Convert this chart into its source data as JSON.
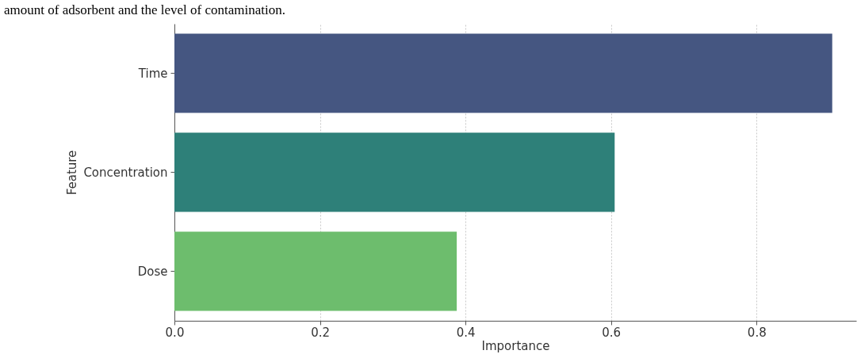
{
  "chart_data": {
    "type": "bar",
    "orientation": "horizontal",
    "annotations": [
      "amount of adsorbent and the level of contamination."
    ],
    "xlabel": "Importance",
    "ylabel": "Feature",
    "categories": [
      "Time",
      "Concentration",
      "Dose"
    ],
    "values": [
      0.904,
      0.605,
      0.388
    ],
    "colors": [
      "#455681",
      "#2e8079",
      "#6dbd6d"
    ],
    "xlim": [
      0,
      0.937
    ],
    "xticks": [
      {
        "value": 0,
        "label": "0.0"
      },
      {
        "value": 0.2,
        "label": "0.2"
      },
      {
        "value": 0.4,
        "label": "0.4"
      },
      {
        "value": 0.6,
        "label": "0.6"
      },
      {
        "value": 0.8,
        "label": "0.8"
      }
    ],
    "grid": "x"
  }
}
